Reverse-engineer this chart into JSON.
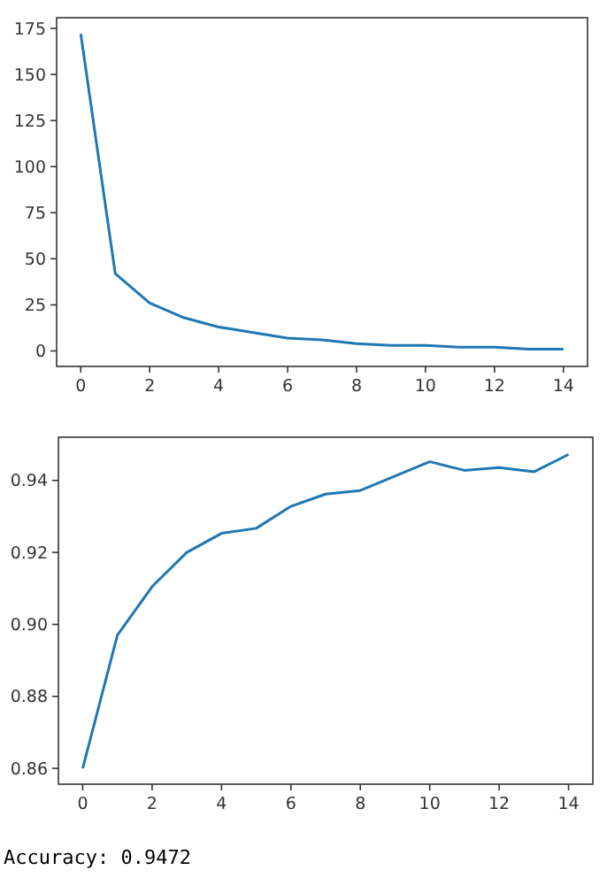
{
  "chart_data": [
    {
      "type": "line",
      "x": [
        0,
        1,
        2,
        3,
        4,
        5,
        6,
        7,
        8,
        9,
        10,
        11,
        12,
        13,
        14
      ],
      "series": [
        {
          "color": "#1f77b4",
          "values": [
            172,
            42,
            26,
            18,
            13,
            10,
            7,
            6,
            4,
            3,
            3,
            2,
            2,
            1,
            1
          ]
        }
      ],
      "xlim": [
        -0.7,
        14.7
      ],
      "ylim": [
        -8.4,
        180.8
      ],
      "xticks": [
        0,
        2,
        4,
        6,
        8,
        10,
        12,
        14
      ],
      "yticks": [
        0,
        25,
        50,
        75,
        100,
        125,
        150,
        175
      ],
      "grid": false
    },
    {
      "type": "line",
      "x": [
        0,
        1,
        2,
        3,
        4,
        5,
        6,
        7,
        8,
        9,
        10,
        11,
        12,
        13,
        14
      ],
      "series": [
        {
          "color": "#1f77b4",
          "values": [
            0.86,
            0.897,
            0.9105,
            0.92,
            0.9253,
            0.9267,
            0.9328,
            0.9362,
            0.9372,
            0.9412,
            0.9452,
            0.9428,
            0.9436,
            0.9424,
            0.9472
          ]
        }
      ],
      "xlim": [
        -0.7,
        14.7
      ],
      "ylim": [
        0.8556,
        0.952
      ],
      "xticks": [
        0,
        2,
        4,
        6,
        8,
        10,
        12,
        14
      ],
      "yticks": [
        {
          "value": 0.86,
          "label": "0.86"
        },
        {
          "value": 0.88,
          "label": "0.88"
        },
        {
          "value": 0.9,
          "label": "0.90"
        },
        {
          "value": 0.92,
          "label": "0.92"
        },
        {
          "value": 0.94,
          "label": "0.94"
        }
      ],
      "grid": false,
      "annotations": [
        "Accuracy: 0.9472"
      ]
    }
  ]
}
